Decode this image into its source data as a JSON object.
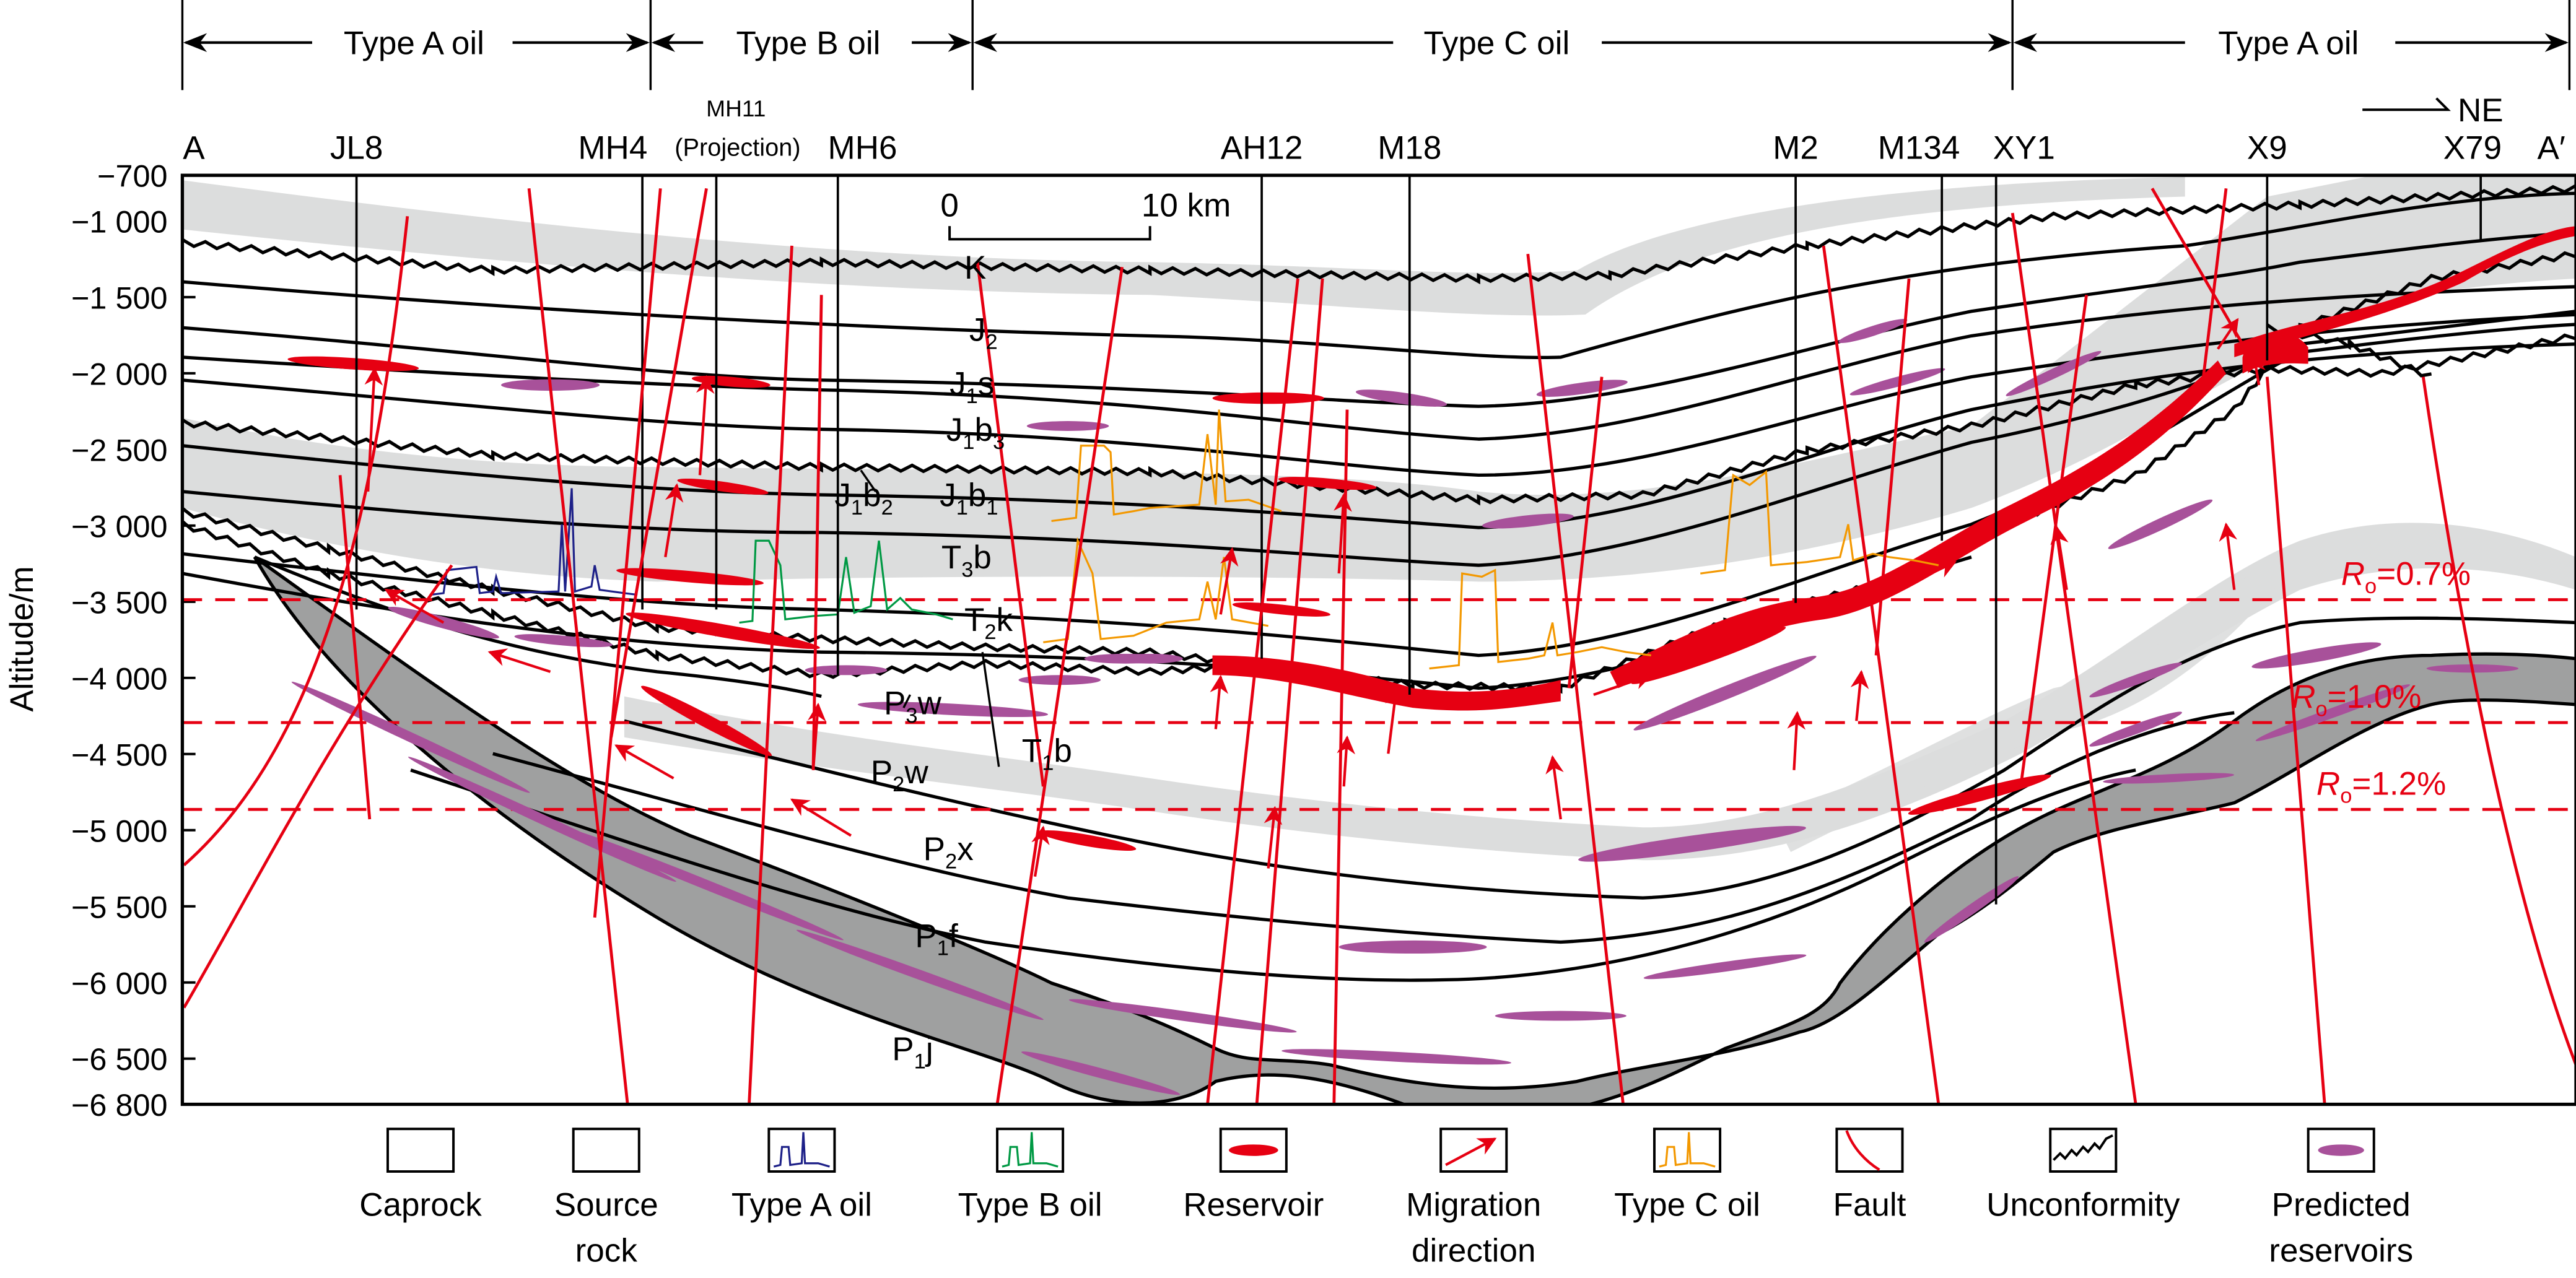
{
  "figure": {
    "oil_zones": [
      {
        "label": "Type A oil"
      },
      {
        "label": "Type B oil"
      },
      {
        "label": "Type C oil"
      },
      {
        "label": "Type A oil"
      }
    ],
    "direction": "NE",
    "wells": [
      {
        "name": "A"
      },
      {
        "name": "JL8"
      },
      {
        "name": "MH4"
      },
      {
        "name": "MH11"
      },
      {
        "name": "(Projection)"
      },
      {
        "name": "MH6"
      },
      {
        "name": "AH12"
      },
      {
        "name": "M18"
      },
      {
        "name": "M2"
      },
      {
        "name": "M134"
      },
      {
        "name": "XY1"
      },
      {
        "name": "X9"
      },
      {
        "name": "X79"
      },
      {
        "name": "A′"
      }
    ],
    "y_axis": {
      "label": "Altitude/m",
      "ticks": [
        "−700",
        "−1 000",
        "−1 500",
        "−2 000",
        "−2 500",
        "−3 000",
        "−3 500",
        "−4 000",
        "−4 500",
        "−5 000",
        "−5 500",
        "−6 000",
        "−6 500",
        "−6 800"
      ]
    },
    "scale_bar": {
      "start": "0",
      "end": "10 km"
    },
    "formations": [
      {
        "main": "K",
        "sub": "",
        "tail": ""
      },
      {
        "main": "J",
        "sub": "2",
        "tail": ""
      },
      {
        "main": "J",
        "sub": "1",
        "tail": "s"
      },
      {
        "main": "J",
        "sub": "1",
        "tail": "b",
        "sub2": "3"
      },
      {
        "main": "J",
        "sub": "1",
        "tail": "b",
        "sub2": "2"
      },
      {
        "main": "J",
        "sub": "1",
        "tail": "b",
        "sub2": "1"
      },
      {
        "main": "T",
        "sub": "3",
        "tail": "b"
      },
      {
        "main": "T",
        "sub": "2",
        "tail": "k"
      },
      {
        "main": "P",
        "sub": "3",
        "tail": "w"
      },
      {
        "main": "T",
        "sub": "1",
        "tail": "b"
      },
      {
        "main": "P",
        "sub": "2",
        "tail": "w"
      },
      {
        "main": "P",
        "sub": "2",
        "tail": "x"
      },
      {
        "main": "P",
        "sub": "1",
        "tail": "f"
      },
      {
        "main": "P",
        "sub": "1",
        "tail": "j"
      }
    ],
    "maturity_lines": [
      {
        "symbol": "R",
        "sub": "o",
        "value": "=0.7%"
      },
      {
        "symbol": "R",
        "sub": "o",
        "value": "=1.0%"
      },
      {
        "symbol": "R",
        "sub": "o",
        "value": "=1.2%"
      }
    ],
    "colors": {
      "caprock": "#dcdddd",
      "source_rock": "#9fa0a0",
      "reservoir": "#e60012",
      "predicted_reservoir": "#a8519a",
      "type_a_oil": "#1d2088",
      "type_b_oil": "#009944",
      "type_c_oil": "#f39800",
      "fault": "#e60012"
    }
  },
  "legend": [
    {
      "label1": "Caprock",
      "label2": ""
    },
    {
      "label1": "Source",
      "label2": "rock"
    },
    {
      "label1": "Type A oil",
      "label2": ""
    },
    {
      "label1": "Type B oil",
      "label2": ""
    },
    {
      "label1": "Reservoir",
      "label2": ""
    },
    {
      "label1": "Migration",
      "label2": "direction"
    },
    {
      "label1": "Type C oil",
      "label2": ""
    },
    {
      "label1": "Fault",
      "label2": ""
    },
    {
      "label1": "Unconformity",
      "label2": ""
    },
    {
      "label1": "Predicted",
      "label2": "reservoirs"
    }
  ]
}
